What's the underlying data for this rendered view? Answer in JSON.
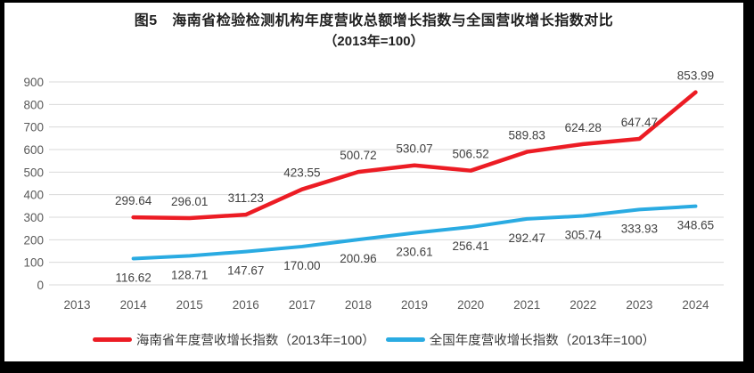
{
  "title": {
    "line1": "图5　海南省检验检测机构年度营收总额增长指数与全国营收增长指数对比",
    "line2": "（2013年=100）"
  },
  "chart_data": {
    "type": "line",
    "title": "图5　海南省检验检测机构年度营收总额增长指数与全国营收增长指数对比",
    "subtitle": "（2013年=100）",
    "categories": [
      "2013",
      "2014",
      "2015",
      "2016",
      "2017",
      "2018",
      "2019",
      "2020",
      "2021",
      "2022",
      "2023",
      "2024"
    ],
    "series": [
      {
        "name": "海南省年度营收增长指数（2013年=100）",
        "color": "#ec1c24",
        "stroke_width": 4.5,
        "label_position": "above",
        "years": [
          "2014",
          "2015",
          "2016",
          "2017",
          "2018",
          "2019",
          "2020",
          "2021",
          "2022",
          "2023",
          "2024"
        ],
        "values": [
          299.64,
          296.01,
          311.23,
          423.55,
          500.72,
          530.07,
          506.52,
          589.83,
          624.28,
          647.47,
          853.99
        ]
      },
      {
        "name": "全国年度营收增长指数（2013年=100）",
        "color": "#2aabe2",
        "stroke_width": 4,
        "label_position": "below",
        "years": [
          "2014",
          "2015",
          "2016",
          "2017",
          "2018",
          "2019",
          "2020",
          "2021",
          "2022",
          "2023",
          "2024"
        ],
        "values": [
          116.62,
          128.71,
          147.67,
          170.0,
          200.96,
          230.61,
          256.41,
          292.47,
          305.74,
          333.93,
          348.65
        ]
      }
    ],
    "ylim": [
      0,
      900
    ],
    "ytick_step": 100,
    "yticks": [
      0,
      100,
      200,
      300,
      400,
      500,
      600,
      700,
      800,
      900
    ],
    "grid": true,
    "legend_position": "bottom",
    "colors": {
      "gridline": "#d9d9d9",
      "axis_label": "#595959",
      "data_label": "#404040",
      "background": "#ffffff",
      "outer_border": "#000000"
    }
  }
}
